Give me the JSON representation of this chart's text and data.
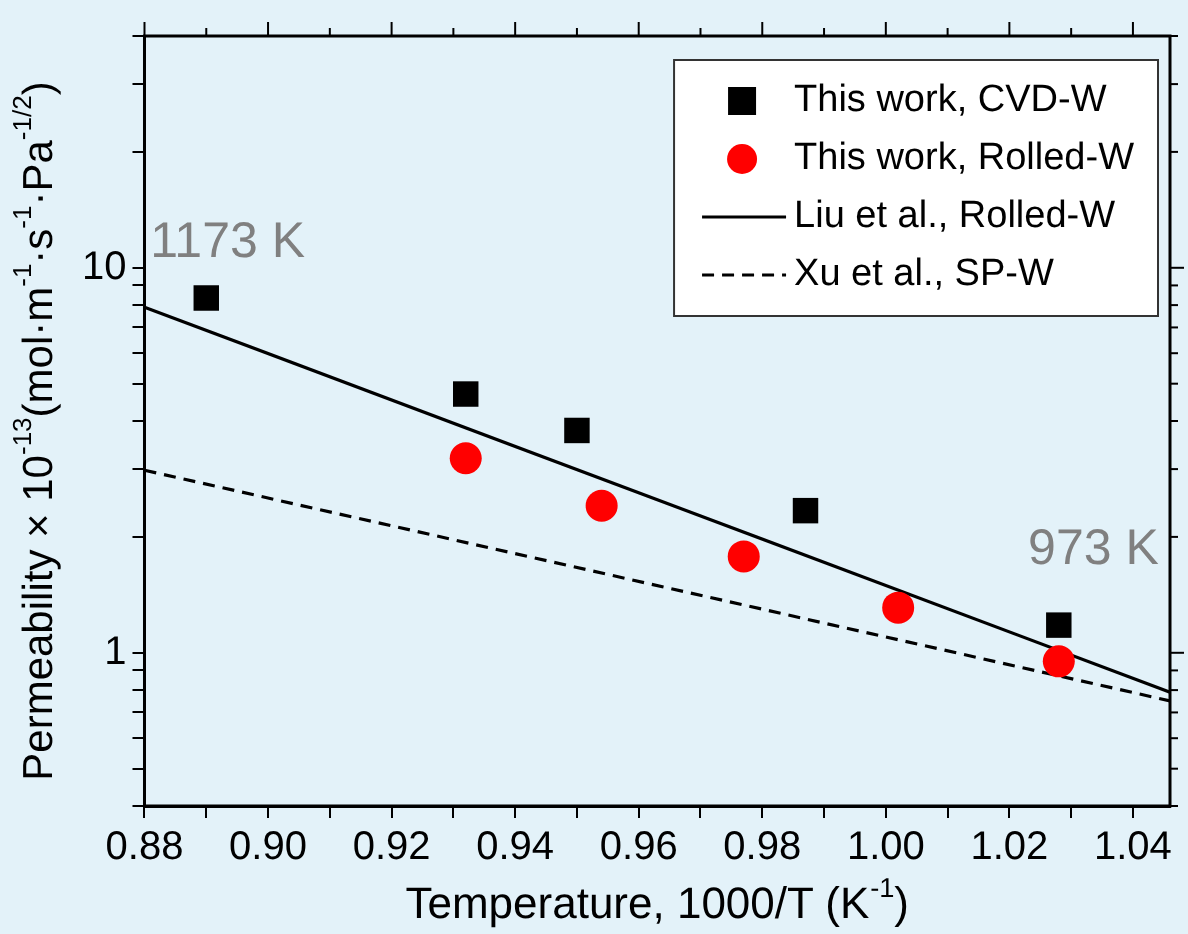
{
  "chart_data": {
    "type": "scatter",
    "xlabel": "Temperature, 1000/T (K$^{-1}$)",
    "ylabel": "Permeability × 10$^{-13}$(mol·m$^{-1}$·s$^{-1}$·Pa$^{-1/2}$)",
    "xlim": [
      0.88,
      1.046
    ],
    "xticks": [
      0.88,
      {
        "value": 0.89,
        "label": null
      },
      "0.90",
      {
        "value": 0.91,
        "label": null
      },
      0.92,
      {
        "value": 0.93,
        "label": null
      },
      0.94,
      {
        "value": 0.95,
        "label": null
      },
      0.96,
      {
        "value": 0.97,
        "label": null
      },
      0.98,
      {
        "value": 0.99,
        "label": null
      },
      "1.00",
      {
        "value": 1.01,
        "label": null
      },
      1.02,
      {
        "value": 1.03,
        "label": null
      },
      1.04
    ],
    "ylim": [
      0.4,
      40
    ],
    "yticks": [
      {
        "value": 0.4,
        "label": null
      },
      {
        "value": 0.5,
        "label": null
      },
      {
        "value": 0.6,
        "label": null
      },
      {
        "value": 0.7,
        "label": null
      },
      {
        "value": 0.8,
        "label": null
      },
      {
        "value": 0.9,
        "label": null
      },
      1,
      {
        "value": 2,
        "label": null
      },
      {
        "value": 3,
        "label": null
      },
      {
        "value": 4,
        "label": null
      },
      {
        "value": 5,
        "label": null
      },
      {
        "value": 6,
        "label": null
      },
      {
        "value": 7,
        "label": null
      },
      {
        "value": 8,
        "label": null
      },
      {
        "value": 9,
        "label": null
      },
      10,
      {
        "value": 20,
        "label": null
      },
      {
        "value": 30,
        "label": null
      },
      {
        "value": 40,
        "label": null
      }
    ],
    "log": "y",
    "grid": false,
    "legend": "top right",
    "series": [
      {
        "name": "This work, CVD-W",
        "type": "scatter",
        "marker": "square",
        "color": "#000000",
        "x": [
          0.89,
          0.932,
          0.95,
          0.987,
          1.028
        ],
        "values": [
          8.35,
          4.7,
          3.78,
          2.34,
          1.18
        ]
      },
      {
        "name": "This work, Rolled-W",
        "type": "scatter",
        "marker": "circle",
        "color": "#ff0000",
        "x": [
          0.932,
          0.954,
          0.977,
          1.002,
          1.028
        ],
        "values": [
          3.2,
          2.41,
          1.78,
          1.31,
          0.95
        ]
      },
      {
        "name": "Liu et al., Rolled-W",
        "type": "line",
        "marker": "none",
        "line_style": "solid",
        "color": "#000000",
        "x": [
          0.88,
          1.046
        ],
        "values": [
          7.9,
          0.79
        ]
      },
      {
        "name": "Xu et al., SP-W",
        "type": "line",
        "marker": "none",
        "line_style": "dashed",
        "color": "#000000",
        "x": [
          0.88,
          1.046
        ],
        "values": [
          2.98,
          0.75
        ]
      }
    ],
    "annotations": [
      {
        "text": "1173 K",
        "x": 0.89,
        "y": 8.35
      },
      {
        "text": "973 K",
        "x": 1.028,
        "y": 1.18
      }
    ]
  }
}
